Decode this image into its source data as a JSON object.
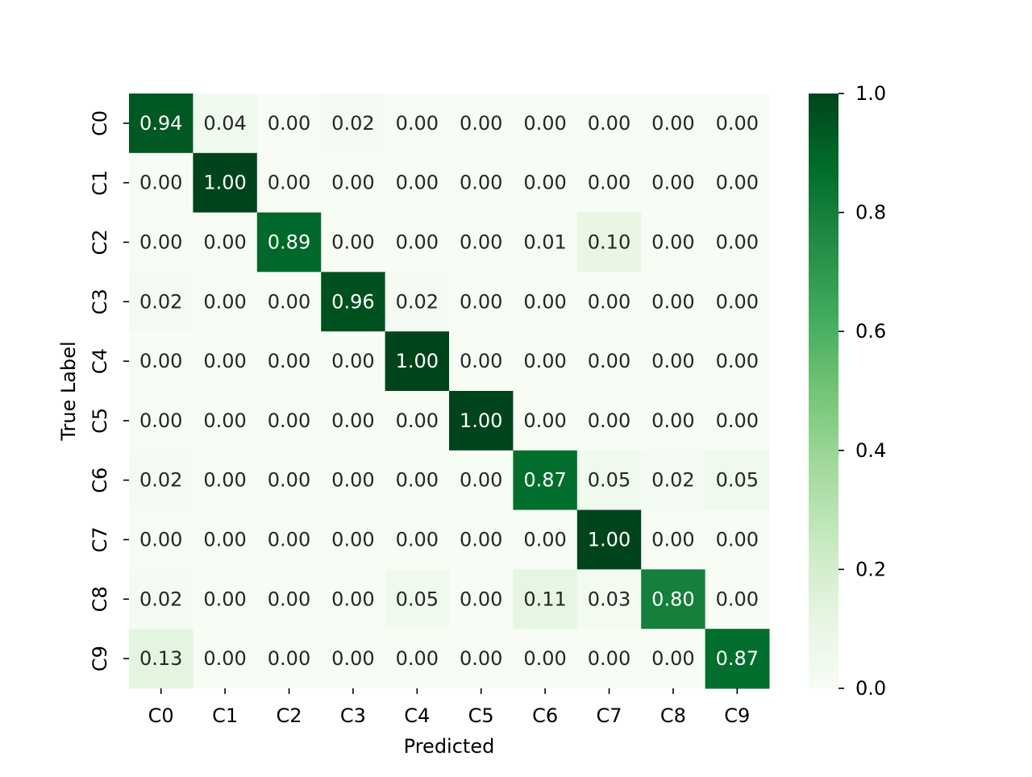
{
  "chart_data": {
    "type": "heatmap",
    "title": "",
    "xlabel": "Predicted",
    "ylabel": "True Label",
    "x_categories": [
      "C0",
      "C1",
      "C2",
      "C3",
      "C4",
      "C5",
      "C6",
      "C7",
      "C8",
      "C9"
    ],
    "y_categories": [
      "C0",
      "C1",
      "C2",
      "C3",
      "C4",
      "C5",
      "C6",
      "C7",
      "C8",
      "C9"
    ],
    "values": [
      [
        0.94,
        0.04,
        0.0,
        0.02,
        0.0,
        0.0,
        0.0,
        0.0,
        0.0,
        0.0
      ],
      [
        0.0,
        1.0,
        0.0,
        0.0,
        0.0,
        0.0,
        0.0,
        0.0,
        0.0,
        0.0
      ],
      [
        0.0,
        0.0,
        0.89,
        0.0,
        0.0,
        0.0,
        0.01,
        0.1,
        0.0,
        0.0
      ],
      [
        0.02,
        0.0,
        0.0,
        0.96,
        0.02,
        0.0,
        0.0,
        0.0,
        0.0,
        0.0
      ],
      [
        0.0,
        0.0,
        0.0,
        0.0,
        1.0,
        0.0,
        0.0,
        0.0,
        0.0,
        0.0
      ],
      [
        0.0,
        0.0,
        0.0,
        0.0,
        0.0,
        1.0,
        0.0,
        0.0,
        0.0,
        0.0
      ],
      [
        0.02,
        0.0,
        0.0,
        0.0,
        0.0,
        0.0,
        0.87,
        0.05,
        0.02,
        0.05
      ],
      [
        0.0,
        0.0,
        0.0,
        0.0,
        0.0,
        0.0,
        0.0,
        1.0,
        0.0,
        0.0
      ],
      [
        0.02,
        0.0,
        0.0,
        0.0,
        0.05,
        0.0,
        0.11,
        0.03,
        0.8,
        0.0
      ],
      [
        0.13,
        0.0,
        0.0,
        0.0,
        0.0,
        0.0,
        0.0,
        0.0,
        0.0,
        0.87
      ]
    ],
    "value_format": "0.00",
    "colormap": "Greens",
    "colormap_stops": [
      "#f7fcf5",
      "#e5f5e0",
      "#c7e9c0",
      "#a1d99b",
      "#74c476",
      "#41ab5d",
      "#238b45",
      "#006d2c",
      "#00441b"
    ],
    "vmin": 0.0,
    "vmax": 1.0,
    "colorbar_ticks": [
      "0.0",
      "0.2",
      "0.4",
      "0.6",
      "0.8",
      "1.0"
    ],
    "colorbar_tick_values": [
      0.0,
      0.2,
      0.4,
      0.6,
      0.8,
      1.0
    ],
    "annotation_dark_text_color": "#262626",
    "annotation_light_text_color": "#ffffff"
  }
}
